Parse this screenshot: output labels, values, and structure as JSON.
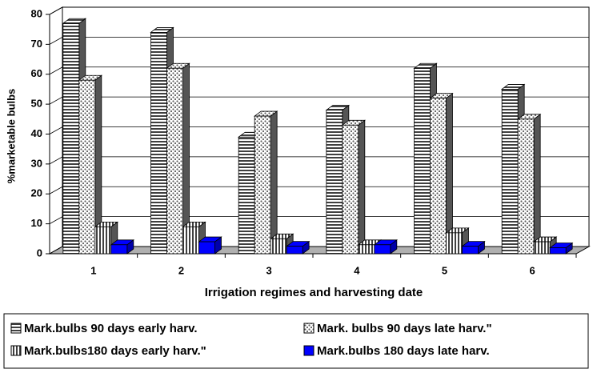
{
  "chart_data": {
    "type": "bar3d",
    "x_label": "Irrigation regimes and harvesting date",
    "y_label": "%marketable bulbs",
    "categories": [
      "1",
      "2",
      "3",
      "4",
      "5",
      "6"
    ],
    "series": [
      {
        "name": "Mark.bulbs 90 days early harv.",
        "color": "#404040",
        "pattern": "horizontal-stripes",
        "values": [
          77,
          74,
          39,
          48,
          62,
          55
        ]
      },
      {
        "name": "Mark. bulbs 90 days late harv.\"",
        "color": "#808080",
        "pattern": "dots",
        "values": [
          58,
          62,
          46,
          43,
          52,
          45
        ]
      },
      {
        "name": "Mark.bulbs180 days early harv.\"",
        "color": "#404040",
        "pattern": "vertical-stripes",
        "values": [
          9,
          9,
          5,
          3,
          7,
          4
        ]
      },
      {
        "name": "Mark.bulbs 180 days late harv.",
        "color": "#0000ff",
        "pattern": "solid",
        "values": [
          3,
          4,
          2.5,
          3,
          2.5,
          2
        ]
      }
    ],
    "ylim": [
      0,
      80
    ],
    "yticks": [
      0,
      10,
      20,
      30,
      40,
      50,
      60,
      70,
      80
    ],
    "grid": true,
    "legend": "bottom"
  }
}
